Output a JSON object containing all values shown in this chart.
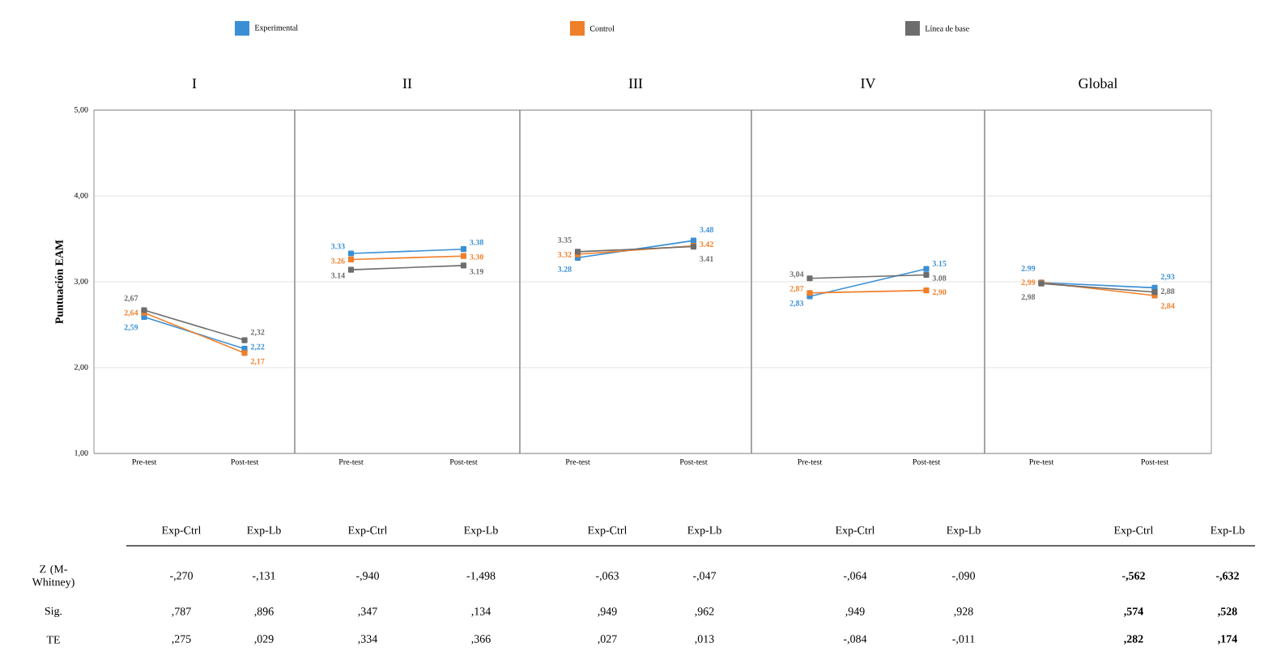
{
  "chart_data": [
    {
      "type": "line",
      "title": "I",
      "ylabel": "Puntuación EAM",
      "categories": [
        "Pre-test",
        "Post-test"
      ],
      "ylim": [
        1,
        5
      ],
      "yticks": [
        {
          "value": 1,
          "label": "1,00"
        },
        {
          "value": 2,
          "label": "2,00"
        },
        {
          "value": 3,
          "label": "3,00"
        },
        {
          "value": 4,
          "label": "4,00"
        },
        {
          "value": 5,
          "label": "5,00"
        }
      ],
      "grid": "y",
      "legend": "top",
      "marker": "square",
      "line_style": "solid",
      "series": [
        {
          "name": "Experimental",
          "color": "#3a8fd4",
          "values": [
            2.59,
            2.22
          ],
          "value_labels": [
            "2,59",
            "2,22"
          ]
        },
        {
          "name": "Control",
          "color": "#f07f2a",
          "values": [
            2.64,
            2.17
          ],
          "value_labels": [
            "2,64",
            "2,17"
          ]
        },
        {
          "name": "Línea de base",
          "color": "#6d6d6d",
          "values": [
            2.67,
            2.32
          ],
          "value_labels": [
            "2,67",
            "2,32"
          ]
        }
      ]
    },
    {
      "type": "line",
      "title": "II",
      "categories": [
        "Pre-test",
        "Post-test"
      ],
      "ylim": [
        1,
        5
      ],
      "yticks": [
        {
          "value": 1,
          "label": null
        },
        {
          "value": 2,
          "label": null
        },
        {
          "value": 3,
          "label": null
        },
        {
          "value": 4,
          "label": null
        },
        {
          "value": 5,
          "label": null
        }
      ],
      "tick_labels": "x",
      "grid": "y",
      "marker": "square",
      "line_style": "solid",
      "series": [
        {
          "color": "#3a8fd4",
          "values": [
            3.33,
            3.38
          ],
          "value_labels": [
            "3.33",
            "3.38"
          ]
        },
        {
          "color": "#f07f2a",
          "values": [
            3.26,
            3.3
          ],
          "value_labels": [
            "3.26",
            "3.30"
          ]
        },
        {
          "color": "#6d6d6d",
          "values": [
            3.14,
            3.19
          ],
          "value_labels": [
            "3.14",
            "3.19"
          ]
        }
      ]
    },
    {
      "type": "line",
      "title": "III",
      "categories": [
        "Pre-test",
        "Post-test"
      ],
      "ylim": [
        1,
        5
      ],
      "yticks": [
        {
          "value": 1,
          "label": null
        },
        {
          "value": 2,
          "label": null
        },
        {
          "value": 3,
          "label": null
        },
        {
          "value": 4,
          "label": null
        },
        {
          "value": 5,
          "label": null
        }
      ],
      "tick_labels": "x",
      "grid": "y",
      "marker": "square",
      "line_style": "solid",
      "series": [
        {
          "color": "#3a8fd4",
          "values": [
            3.28,
            3.48
          ],
          "value_labels": [
            "3.28",
            "3.48"
          ]
        },
        {
          "color": "#f07f2a",
          "values": [
            3.32,
            3.42
          ],
          "value_labels": [
            "3.32",
            "3.42"
          ]
        },
        {
          "color": "#6d6d6d",
          "values": [
            3.35,
            3.41
          ],
          "value_labels": [
            "3.35",
            "3.41"
          ]
        }
      ]
    },
    {
      "type": "line",
      "title": "IV",
      "categories": [
        "Pre-test",
        "Post-test"
      ],
      "ylim": [
        1,
        5
      ],
      "yticks": [
        {
          "value": 1,
          "label": null
        },
        {
          "value": 2,
          "label": null
        },
        {
          "value": 3,
          "label": null
        },
        {
          "value": 4,
          "label": null
        },
        {
          "value": 5,
          "label": null
        }
      ],
      "tick_labels": "x",
      "grid": "y",
      "marker": "square",
      "line_style": "solid",
      "series": [
        {
          "color": "#3a8fd4",
          "values": [
            2.83,
            3.15
          ],
          "value_labels": [
            "2,83",
            "3.15"
          ]
        },
        {
          "color": "#f07f2a",
          "values": [
            2.87,
            2.9
          ],
          "value_labels": [
            "2,87",
            "2,90"
          ]
        },
        {
          "color": "#6d6d6d",
          "values": [
            3.04,
            3.08
          ],
          "value_labels": [
            "3,04",
            "3.08"
          ]
        }
      ]
    },
    {
      "type": "line",
      "title": "Global",
      "categories": [
        "Pre-test",
        "Post-test"
      ],
      "ylim": [
        1,
        5
      ],
      "yticks": [
        {
          "value": 1,
          "label": null
        },
        {
          "value": 2,
          "label": null
        },
        {
          "value": 3,
          "label": null
        },
        {
          "value": 4,
          "label": null
        },
        {
          "value": 5,
          "label": null
        }
      ],
      "tick_labels": "x",
      "grid": "y",
      "marker": "square",
      "line_style": "solid",
      "series": [
        {
          "color": "#3a8fd4",
          "values": [
            2.99,
            2.93
          ],
          "value_labels": [
            "2.99",
            "2,93"
          ]
        },
        {
          "color": "#f07f2a",
          "values": [
            2.99,
            2.84
          ],
          "value_labels": [
            "2,99",
            "2,84"
          ]
        },
        {
          "color": "#6d6d6d",
          "values": [
            2.98,
            2.88
          ],
          "value_labels": [
            "2,98",
            "2,88"
          ]
        }
      ]
    },
    {
      "type": "other",
      "annotations": [
        "Exp-Ctrl",
        "Exp-Lb",
        "Exp-Ctrl",
        "Exp-Lb",
        "Exp-Ctrl",
        "Exp-Lb",
        "Exp-Ctrl",
        "Exp-Lb",
        "Exp-Ctrl",
        "Exp-Lb",
        "Z (M-Whitney)",
        "-,270",
        "-,131",
        "-,940",
        "-1,498",
        "-,063",
        "-,047",
        "-,064",
        "-,090",
        "-,562",
        "-,632",
        "Sig.",
        ",787",
        ",896",
        ",347",
        ",134",
        ",949",
        ",962",
        ",949",
        ",928",
        ",574",
        ",528",
        "TE",
        ",275",
        ",029",
        ",334",
        ",366",
        ",027",
        ",013",
        "-,084",
        "-,011",
        ",282",
        ",174"
      ]
    }
  ]
}
